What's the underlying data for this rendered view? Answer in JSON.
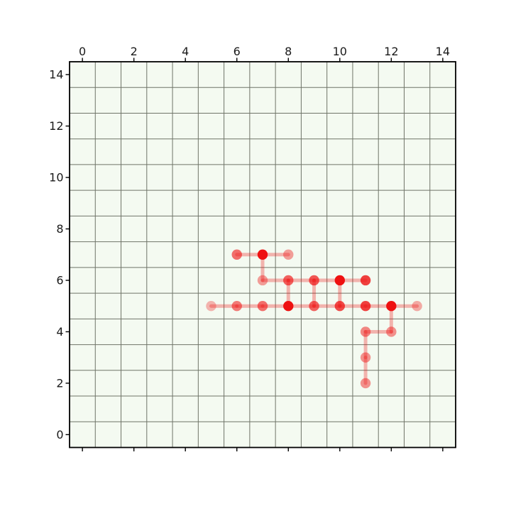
{
  "figure": {
    "background": "#ffffff",
    "plot_background": "#f4faf1",
    "grid_color": "#6f7468",
    "spine_color": "#000000",
    "tick_color": "#000000",
    "tick_label_color": "#1a1a1a"
  },
  "chart_data": {
    "type": "scatter",
    "title": "",
    "xlabel": "",
    "ylabel": "",
    "xlim": [
      -0.5,
      14.5
    ],
    "ylim": [
      -0.5,
      14.5
    ],
    "x_ticks": [
      0,
      2,
      4,
      6,
      8,
      10,
      12,
      14
    ],
    "y_ticks": [
      0,
      2,
      4,
      6,
      8,
      10,
      12,
      14
    ],
    "x_tick_label_position": "top",
    "y_tick_label_position": "left",
    "grid": true,
    "grid_step": 1,
    "grid_offset": 0.5,
    "point_color": "#ee1111",
    "line_color": "#ee1111",
    "line_alpha": 0.3,
    "line_width": 5,
    "point_radius": 7.2,
    "points": [
      {
        "x": 6,
        "y": 7,
        "alpha": 0.6
      },
      {
        "x": 7,
        "y": 7,
        "alpha": 1.0
      },
      {
        "x": 8,
        "y": 7,
        "alpha": 0.4
      },
      {
        "x": 7,
        "y": 6,
        "alpha": 0.4
      },
      {
        "x": 8,
        "y": 6,
        "alpha": 0.65
      },
      {
        "x": 9,
        "y": 6,
        "alpha": 0.7
      },
      {
        "x": 10,
        "y": 6,
        "alpha": 1.0
      },
      {
        "x": 11,
        "y": 6,
        "alpha": 0.8
      },
      {
        "x": 5,
        "y": 5,
        "alpha": 0.3
      },
      {
        "x": 6,
        "y": 5,
        "alpha": 0.55
      },
      {
        "x": 7,
        "y": 5,
        "alpha": 0.6
      },
      {
        "x": 8,
        "y": 5,
        "alpha": 1.0
      },
      {
        "x": 9,
        "y": 5,
        "alpha": 0.65
      },
      {
        "x": 10,
        "y": 5,
        "alpha": 0.75
      },
      {
        "x": 11,
        "y": 5,
        "alpha": 0.8
      },
      {
        "x": 12,
        "y": 5,
        "alpha": 1.0
      },
      {
        "x": 13,
        "y": 5,
        "alpha": 0.35
      },
      {
        "x": 11,
        "y": 4,
        "alpha": 0.5
      },
      {
        "x": 12,
        "y": 4,
        "alpha": 0.45
      },
      {
        "x": 11,
        "y": 3,
        "alpha": 0.45
      },
      {
        "x": 11,
        "y": 2,
        "alpha": 0.45
      }
    ],
    "segments": [
      [
        6,
        7,
        7,
        7
      ],
      [
        7,
        7,
        8,
        7
      ],
      [
        7,
        7,
        7,
        6
      ],
      [
        7,
        6,
        8,
        6
      ],
      [
        8,
        6,
        9,
        6
      ],
      [
        9,
        6,
        10,
        6
      ],
      [
        10,
        6,
        11,
        6
      ],
      [
        8,
        6,
        8,
        5
      ],
      [
        9,
        6,
        9,
        5
      ],
      [
        10,
        6,
        10,
        5
      ],
      [
        5,
        5,
        6,
        5
      ],
      [
        6,
        5,
        7,
        5
      ],
      [
        7,
        5,
        8,
        5
      ],
      [
        8,
        5,
        9,
        5
      ],
      [
        9,
        5,
        10,
        5
      ],
      [
        10,
        5,
        11,
        5
      ],
      [
        11,
        5,
        12,
        5
      ],
      [
        12,
        5,
        13,
        5
      ],
      [
        12,
        5,
        12,
        4
      ],
      [
        11,
        4,
        12,
        4
      ],
      [
        11,
        4,
        11,
        3
      ],
      [
        11,
        3,
        11,
        2
      ]
    ]
  }
}
